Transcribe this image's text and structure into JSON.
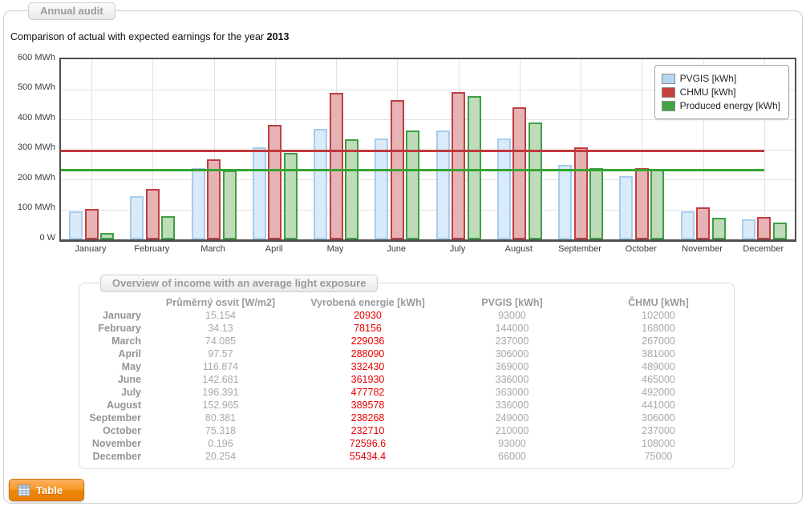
{
  "panel": {
    "tab_label": "Annual audit"
  },
  "title": {
    "text": "Comparison of actual with expected earnings for the year",
    "year": "2013"
  },
  "chart_data": {
    "type": "bar",
    "title": "Comparison of actual with expected earnings for the year 2013",
    "categories": [
      "January",
      "February",
      "March",
      "April",
      "May",
      "June",
      "July",
      "August",
      "September",
      "October",
      "November",
      "December"
    ],
    "series": [
      {
        "name": "PVGIS [kWh]",
        "fill": "#d9eaf9",
        "border": "#a6cdec",
        "swatch": "#b5d8f2",
        "values_mwh": [
          93,
          144,
          237,
          306,
          369,
          336,
          363,
          336,
          249,
          210,
          93,
          66
        ]
      },
      {
        "name": "CHMU [kWh]",
        "fill": "#e6b2b4",
        "border": "#bf3e43",
        "swatch": "#c9403f",
        "values_mwh": [
          102,
          168,
          267,
          381,
          489,
          465,
          492,
          441,
          306,
          237,
          108,
          75
        ]
      },
      {
        "name": "Produced energy [kWh]",
        "fill": "#bedcba",
        "border": "#3e9f44",
        "swatch": "#43a447",
        "values_mwh": [
          20.93,
          78.156,
          229.036,
          288.09,
          332.43,
          361.93,
          477.782,
          389.578,
          238.268,
          232.71,
          72.5966,
          55.4344
        ]
      }
    ],
    "average_lines": [
      {
        "name": "CHMU average",
        "color": "#c0393e",
        "value_mwh": 294.25
      },
      {
        "name": "Produced energy average",
        "color": "#36a432",
        "value_mwh": 231.41
      }
    ],
    "y_ticks": [
      {
        "label": "600 MWh",
        "value": 600
      },
      {
        "label": "500 MWh",
        "value": 500
      },
      {
        "label": "400 MWh",
        "value": 400
      },
      {
        "label": "300 MWh",
        "value": 300
      },
      {
        "label": "200 MWh",
        "value": 200
      },
      {
        "label": "100 MWh",
        "value": 100
      },
      {
        "label": "0 W",
        "value": 0
      }
    ],
    "ylim": [
      0,
      600
    ],
    "grid": true,
    "legend_position": "top-right"
  },
  "table_panel": {
    "tab_label": "Overview of income with an average light exposure",
    "columns": [
      "",
      "Průměrný osvit [W/m2]",
      "Vyrobená energie [kWh]",
      "PVGIS [kWh]",
      "ČHMU [kWh]"
    ],
    "rows": [
      {
        "month": "January",
        "osvit": "15.154",
        "energie": "20930",
        "pvgis": "93000",
        "chmu": "102000"
      },
      {
        "month": "February",
        "osvit": "34.13",
        "energie": "78156",
        "pvgis": "144000",
        "chmu": "168000"
      },
      {
        "month": "March",
        "osvit": "74.085",
        "energie": "229036",
        "pvgis": "237000",
        "chmu": "267000"
      },
      {
        "month": "April",
        "osvit": "97.57",
        "energie": "288090",
        "pvgis": "306000",
        "chmu": "381000"
      },
      {
        "month": "May",
        "osvit": "116.874",
        "energie": "332430",
        "pvgis": "369000",
        "chmu": "489000"
      },
      {
        "month": "June",
        "osvit": "142.681",
        "energie": "361930",
        "pvgis": "336000",
        "chmu": "465000"
      },
      {
        "month": "July",
        "osvit": "196.391",
        "energie": "477782",
        "pvgis": "363000",
        "chmu": "492000"
      },
      {
        "month": "August",
        "osvit": "152.965",
        "energie": "389578",
        "pvgis": "336000",
        "chmu": "441000"
      },
      {
        "month": "September",
        "osvit": "80.381",
        "energie": "238268",
        "pvgis": "249000",
        "chmu": "306000"
      },
      {
        "month": "October",
        "osvit": "75.318",
        "energie": "232710",
        "pvgis": "210000",
        "chmu": "237000"
      },
      {
        "month": "November",
        "osvit": "0.196",
        "energie": "72596.6",
        "pvgis": "93000",
        "chmu": "108000"
      },
      {
        "month": "December",
        "osvit": "20.254",
        "energie": "55434.4",
        "pvgis": "66000",
        "chmu": "75000"
      }
    ]
  },
  "footer": {
    "table_button_label": "Table"
  },
  "colors": {
    "accent_orange": "#e87e04",
    "red_text": "#e80000",
    "avg_line_red": "#c0393e",
    "avg_line_green": "#36a432",
    "plot_border": "#4f4f4f"
  }
}
